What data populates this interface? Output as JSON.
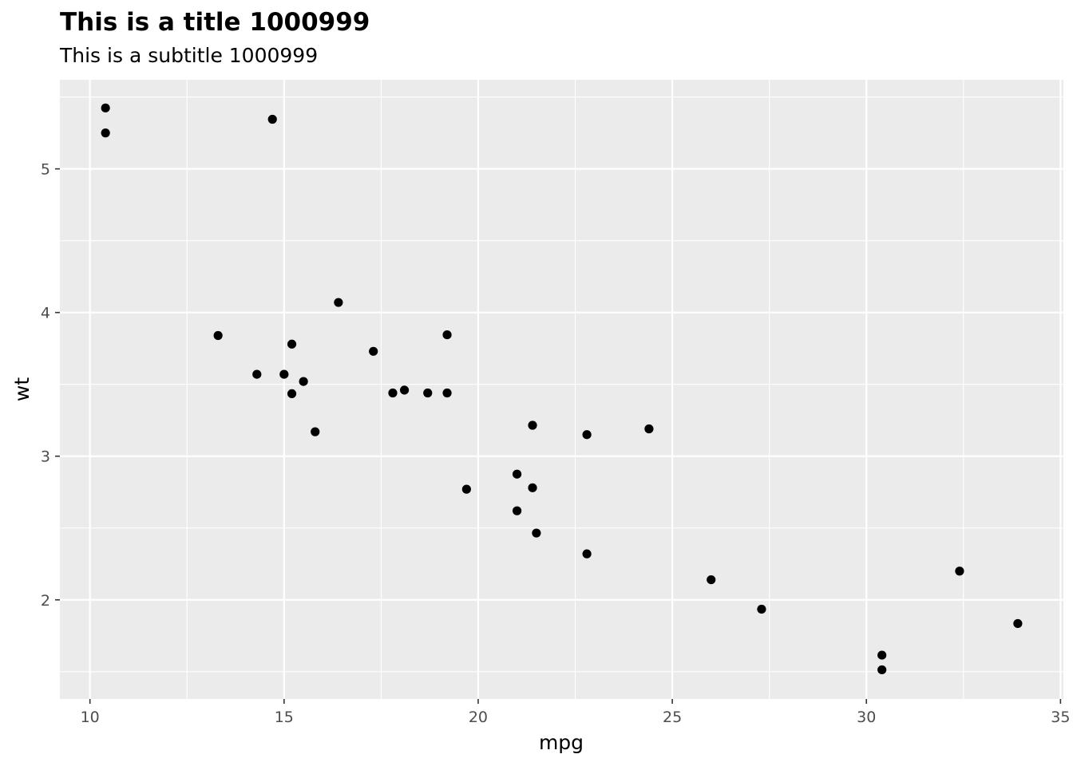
{
  "chart_data": {
    "type": "scatter",
    "title": "This is a title 1000999",
    "subtitle": "This is a subtitle 1000999",
    "xlabel": "mpg",
    "ylabel": "wt",
    "xlim": [
      9.225,
      35.075
    ],
    "ylim": [
      1.31,
      5.62
    ],
    "x_ticks": [
      10,
      15,
      20,
      25,
      30,
      35
    ],
    "x_tick_labels": [
      "10",
      "15",
      "20",
      "25",
      "30",
      "35"
    ],
    "x_minor_ticks": [
      12.5,
      17.5,
      22.5,
      27.5,
      32.5
    ],
    "y_ticks": [
      2,
      3,
      4,
      5
    ],
    "y_tick_labels": [
      "2",
      "3",
      "4",
      "5"
    ],
    "y_minor_ticks": [
      1.5,
      2.5,
      3.5,
      4.5,
      5.5
    ],
    "grid": true,
    "legend": "none",
    "colors": {
      "panel_background": "#ebebeb",
      "grid_line": "#ffffff",
      "point": "#000000",
      "tick_mark": "#333333",
      "tick_label": "#4d4d4d"
    },
    "points": [
      {
        "x": 21.0,
        "y": 2.62
      },
      {
        "x": 21.0,
        "y": 2.875
      },
      {
        "x": 22.8,
        "y": 2.32
      },
      {
        "x": 21.4,
        "y": 3.215
      },
      {
        "x": 18.7,
        "y": 3.44
      },
      {
        "x": 18.1,
        "y": 3.46
      },
      {
        "x": 14.3,
        "y": 3.57
      },
      {
        "x": 24.4,
        "y": 3.19
      },
      {
        "x": 22.8,
        "y": 3.15
      },
      {
        "x": 19.2,
        "y": 3.44
      },
      {
        "x": 17.8,
        "y": 3.44
      },
      {
        "x": 16.4,
        "y": 4.07
      },
      {
        "x": 17.3,
        "y": 3.73
      },
      {
        "x": 15.2,
        "y": 3.78
      },
      {
        "x": 10.4,
        "y": 5.25
      },
      {
        "x": 10.4,
        "y": 5.424
      },
      {
        "x": 14.7,
        "y": 5.345
      },
      {
        "x": 32.4,
        "y": 2.2
      },
      {
        "x": 30.4,
        "y": 1.615
      },
      {
        "x": 33.9,
        "y": 1.835
      },
      {
        "x": 21.5,
        "y": 2.465
      },
      {
        "x": 15.5,
        "y": 3.52
      },
      {
        "x": 15.2,
        "y": 3.435
      },
      {
        "x": 13.3,
        "y": 3.84
      },
      {
        "x": 19.2,
        "y": 3.845
      },
      {
        "x": 27.3,
        "y": 1.935
      },
      {
        "x": 26.0,
        "y": 2.14
      },
      {
        "x": 30.4,
        "y": 1.513
      },
      {
        "x": 15.8,
        "y": 3.17
      },
      {
        "x": 19.7,
        "y": 2.77
      },
      {
        "x": 15.0,
        "y": 3.57
      },
      {
        "x": 21.4,
        "y": 2.78
      }
    ]
  }
}
